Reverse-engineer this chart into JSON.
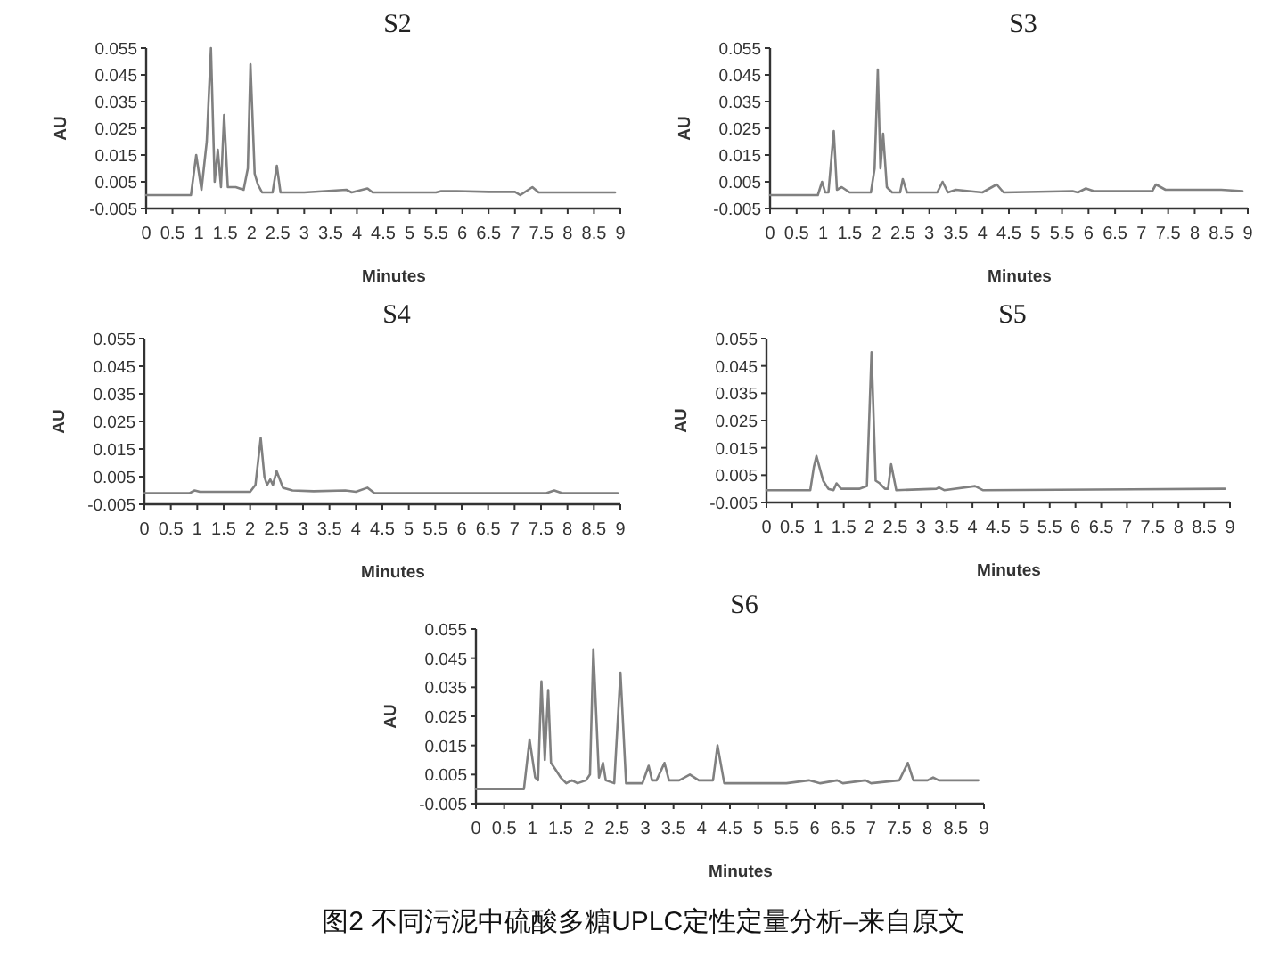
{
  "chart_data": [
    {
      "type": "line",
      "title": "S2",
      "xlabel": "Minutes",
      "ylabel": "AU",
      "xlim": [
        0,
        9
      ],
      "ylim": [
        -0.005,
        0.055
      ],
      "xticks": [
        0,
        0.5,
        1,
        1.5,
        2,
        2.5,
        3,
        3.5,
        4,
        4.5,
        5,
        5.5,
        6,
        6.5,
        7,
        7.5,
        8,
        8.5,
        9
      ],
      "yticks": [
        -0.005,
        0.005,
        0.015,
        0.025,
        0.035,
        0.045,
        0.055
      ],
      "series": [
        {
          "color": "#808080",
          "x": [
            0,
            0.85,
            0.95,
            1.05,
            1.15,
            1.23,
            1.3,
            1.36,
            1.42,
            1.48,
            1.55,
            1.7,
            1.85,
            1.93,
            1.98,
            2.06,
            2.12,
            2.2,
            2.4,
            2.48,
            2.55,
            3,
            3.8,
            3.9,
            4.2,
            4.3,
            5.5,
            5.6,
            5.9,
            6.5,
            7,
            7.1,
            7.33,
            7.45,
            8.9
          ],
          "values": [
            0,
            0,
            0.015,
            0.002,
            0.02,
            0.055,
            0.005,
            0.017,
            0.003,
            0.03,
            0.003,
            0.003,
            0.002,
            0.01,
            0.049,
            0.008,
            0.004,
            0.001,
            0.001,
            0.011,
            0.001,
            0.001,
            0.002,
            0.001,
            0.0025,
            0.001,
            0.001,
            0.0015,
            0.0015,
            0.0012,
            0.0012,
            0,
            0.003,
            0.001,
            0.001
          ]
        }
      ]
    },
    {
      "type": "line",
      "title": "S3",
      "xlabel": "Minutes",
      "ylabel": "AU",
      "xlim": [
        0,
        9
      ],
      "ylim": [
        -0.005,
        0.055
      ],
      "xticks": [
        0,
        0.5,
        1,
        1.5,
        2,
        2.5,
        3,
        3.5,
        4,
        4.5,
        5,
        5.5,
        6,
        6.5,
        7,
        7.5,
        8,
        8.5,
        9
      ],
      "yticks": [
        -0.005,
        0.005,
        0.015,
        0.025,
        0.035,
        0.045,
        0.055
      ],
      "series": [
        {
          "color": "#808080",
          "x": [
            0,
            0.9,
            0.98,
            1.04,
            1.1,
            1.2,
            1.26,
            1.35,
            1.5,
            1.9,
            1.97,
            2.03,
            2.08,
            2.13,
            2.2,
            2.3,
            2.45,
            2.5,
            2.58,
            3.15,
            3.25,
            3.35,
            3.5,
            4,
            4.27,
            4.4,
            5.7,
            5.8,
            5.95,
            6.1,
            7.2,
            7.27,
            7.45,
            8.5,
            8.9
          ],
          "values": [
            0,
            0,
            0.005,
            0.001,
            0.001,
            0.024,
            0.002,
            0.003,
            0.001,
            0.001,
            0.01,
            0.047,
            0.01,
            0.023,
            0.003,
            0.001,
            0.001,
            0.006,
            0.001,
            0.001,
            0.005,
            0.001,
            0.002,
            0.001,
            0.004,
            0.001,
            0.0015,
            0.001,
            0.0025,
            0.0015,
            0.0015,
            0.004,
            0.002,
            0.002,
            0.0015
          ]
        }
      ]
    },
    {
      "type": "line",
      "title": "S4",
      "xlabel": "Minutes",
      "ylabel": "AU",
      "xlim": [
        0,
        9
      ],
      "ylim": [
        -0.005,
        0.055
      ],
      "xticks": [
        0,
        0.5,
        1,
        1.5,
        2,
        2.5,
        3,
        3.5,
        4,
        4.5,
        5,
        5.5,
        6,
        6.5,
        7,
        7.5,
        8,
        8.5,
        9
      ],
      "yticks": [
        -0.005,
        0.005,
        0.015,
        0.025,
        0.035,
        0.045,
        0.055
      ],
      "series": [
        {
          "color": "#808080",
          "x": [
            0,
            0.85,
            0.95,
            1.05,
            2,
            2.1,
            2.2,
            2.27,
            2.32,
            2.38,
            2.43,
            2.5,
            2.62,
            2.8,
            3.2,
            3.8,
            4,
            4.22,
            4.35,
            7.6,
            7.75,
            7.9,
            8.95
          ],
          "values": [
            -0.001,
            -0.001,
            0,
            -0.0005,
            -0.0005,
            0.002,
            0.019,
            0.005,
            0.002,
            0.004,
            0.002,
            0.007,
            0.001,
            0,
            -0.0003,
            0,
            -0.0005,
            0.001,
            -0.001,
            -0.001,
            0,
            -0.001,
            -0.001
          ]
        }
      ]
    },
    {
      "type": "line",
      "title": "S5",
      "xlabel": "Minutes",
      "ylabel": "AU",
      "xlim": [
        0,
        9
      ],
      "ylim": [
        -0.005,
        0.055
      ],
      "xticks": [
        0,
        0.5,
        1,
        1.5,
        2,
        2.5,
        3,
        3.5,
        4,
        4.5,
        5,
        5.5,
        6,
        6.5,
        7,
        7.5,
        8,
        8.5,
        9
      ],
      "yticks": [
        -0.005,
        0.005,
        0.015,
        0.025,
        0.035,
        0.045,
        0.055
      ],
      "series": [
        {
          "color": "#808080",
          "x": [
            0,
            0.85,
            0.92,
            0.97,
            1.1,
            1.2,
            1.3,
            1.36,
            1.45,
            1.8,
            1.95,
            2.04,
            2.12,
            2.2,
            2.3,
            2.36,
            2.42,
            2.52,
            3.3,
            3.35,
            3.45,
            4.05,
            4.2,
            8.9
          ],
          "values": [
            -0.0005,
            -0.0005,
            0.008,
            0.012,
            0.003,
            0,
            -0.0005,
            0.002,
            0,
            0,
            0.001,
            0.05,
            0.003,
            0.002,
            0,
            0,
            0.009,
            -0.0005,
            0,
            0.0005,
            -0.0005,
            0.001,
            -0.0005,
            0
          ]
        }
      ]
    },
    {
      "type": "line",
      "title": "S6",
      "xlabel": "Minutes",
      "ylabel": "AU",
      "xlim": [
        0,
        9
      ],
      "ylim": [
        -0.005,
        0.055
      ],
      "xticks": [
        0,
        0.5,
        1,
        1.5,
        2,
        2.5,
        3,
        3.5,
        4,
        4.5,
        5,
        5.5,
        6,
        6.5,
        7,
        7.5,
        8,
        8.5,
        9
      ],
      "yticks": [
        -0.005,
        0.005,
        0.015,
        0.025,
        0.035,
        0.045,
        0.055
      ],
      "annotations": [
        "图2 不同污泥中硫酸多糖UPLC定性定量分析–来自原文"
      ],
      "series": [
        {
          "color": "#808080",
          "x": [
            0,
            0.85,
            0.95,
            1.05,
            1.1,
            1.16,
            1.22,
            1.28,
            1.33,
            1.4,
            1.5,
            1.6,
            1.7,
            1.8,
            1.95,
            2.02,
            2.08,
            2.18,
            2.25,
            2.3,
            2.45,
            2.56,
            2.66,
            2.95,
            3.06,
            3.12,
            3.2,
            3.34,
            3.42,
            3.6,
            3.79,
            3.95,
            4.2,
            4.28,
            4.4,
            5.5,
            5.9,
            6.1,
            6.4,
            6.5,
            6.9,
            7,
            7.5,
            7.65,
            7.75,
            8,
            8.1,
            8.2,
            8.9
          ],
          "values": [
            0,
            0,
            0.017,
            0.004,
            0.003,
            0.037,
            0.01,
            0.034,
            0.009,
            0.007,
            0.004,
            0.002,
            0.003,
            0.002,
            0.003,
            0.005,
            0.048,
            0.004,
            0.009,
            0.003,
            0.002,
            0.04,
            0.002,
            0.002,
            0.008,
            0.003,
            0.003,
            0.009,
            0.003,
            0.003,
            0.005,
            0.003,
            0.003,
            0.015,
            0.002,
            0.002,
            0.003,
            0.002,
            0.003,
            0.002,
            0.003,
            0.002,
            0.003,
            0.009,
            0.003,
            0.003,
            0.004,
            0.003,
            0.003
          ]
        }
      ]
    }
  ]
}
